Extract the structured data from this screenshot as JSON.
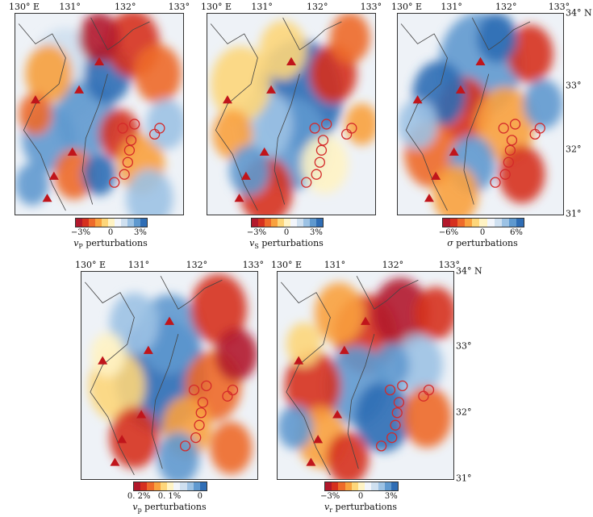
{
  "longitude_ticks": [
    "130° E",
    "131°",
    "132°",
    "133°"
  ],
  "latitude_ticks": [
    "34° N",
    "33°",
    "32°",
    "31°"
  ],
  "colors": {
    "scale": [
      "#b2182b",
      "#d6301e",
      "#ee6a2a",
      "#f9a13e",
      "#fdd67a",
      "#fff3c4",
      "#f2f5fb",
      "#cfe0f0",
      "#9cc2e4",
      "#5f99cf",
      "#2f6db5"
    ],
    "volcano": "#c0151b",
    "station_circle": "#d42a2a",
    "background": "#eef2f7"
  },
  "panels": [
    {
      "id": "vp",
      "symbol": "v",
      "subscript": "P",
      "suffix": " perturbations",
      "colorbar_ticks": [
        "−3%",
        "0",
        "3%"
      ],
      "show_lon": true,
      "show_lat": false
    },
    {
      "id": "vs",
      "symbol": "v",
      "subscript": "S",
      "suffix": " perturbations",
      "colorbar_ticks": [
        "−3%",
        "0",
        "3%"
      ],
      "show_lon": true,
      "show_lat": false
    },
    {
      "id": "sigma",
      "symbol": "σ",
      "subscript": "",
      "suffix": " perturbations",
      "colorbar_ticks": [
        "−6%",
        "0",
        "6%"
      ],
      "show_lon": true,
      "show_lat": true
    },
    {
      "id": "vp-alt",
      "symbol": "v",
      "subscript": "p",
      "suffix": " perturbations",
      "colorbar_ticks": [
        "0. 2%",
        "0. 1%",
        "0"
      ],
      "show_lon": true,
      "show_lat": false
    },
    {
      "id": "vr",
      "symbol": "v",
      "subscript": "r",
      "suffix": " perturbations",
      "colorbar_ticks": [
        "−3%",
        "0",
        "3%"
      ],
      "show_lon": true,
      "show_lat": true
    }
  ]
}
